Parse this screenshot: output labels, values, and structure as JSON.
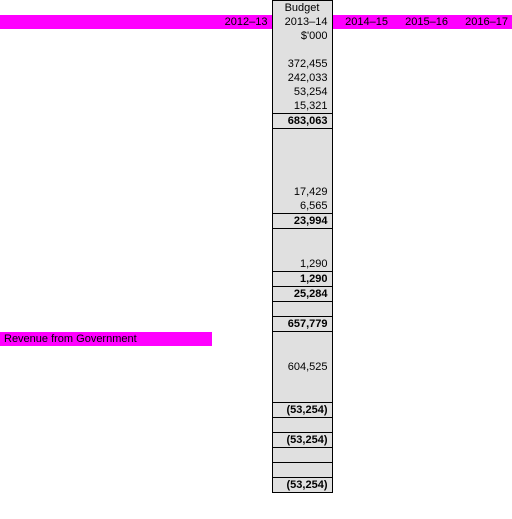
{
  "columns": {
    "col1_label": "2012–13",
    "budget_label": "Budget",
    "col2_label": "2013–14",
    "col3_label": "2014–15",
    "col4_label": "2015–16",
    "col5_label": "2016–17",
    "unit": "$'000"
  },
  "rows": {
    "v1": "372,455",
    "v2": "242,033",
    "v3": "53,254",
    "v4": "15,321",
    "sub1": "683,063",
    "v5": "17,429",
    "v6": "6,565",
    "sub2": "23,994",
    "v7": "1,290",
    "sub3": "1,290",
    "sub4": "25,284",
    "net_cost": "657,779",
    "rev_gov_label": "Revenue from Government",
    "rev_gov": "604,525",
    "neg1": "(53,254)",
    "neg2": "(53,254)",
    "neg3": "(53,254)"
  },
  "colors": {
    "shaded": "#e0e0e0",
    "magenta": "#ff00ff",
    "bg": "#ffffff"
  }
}
